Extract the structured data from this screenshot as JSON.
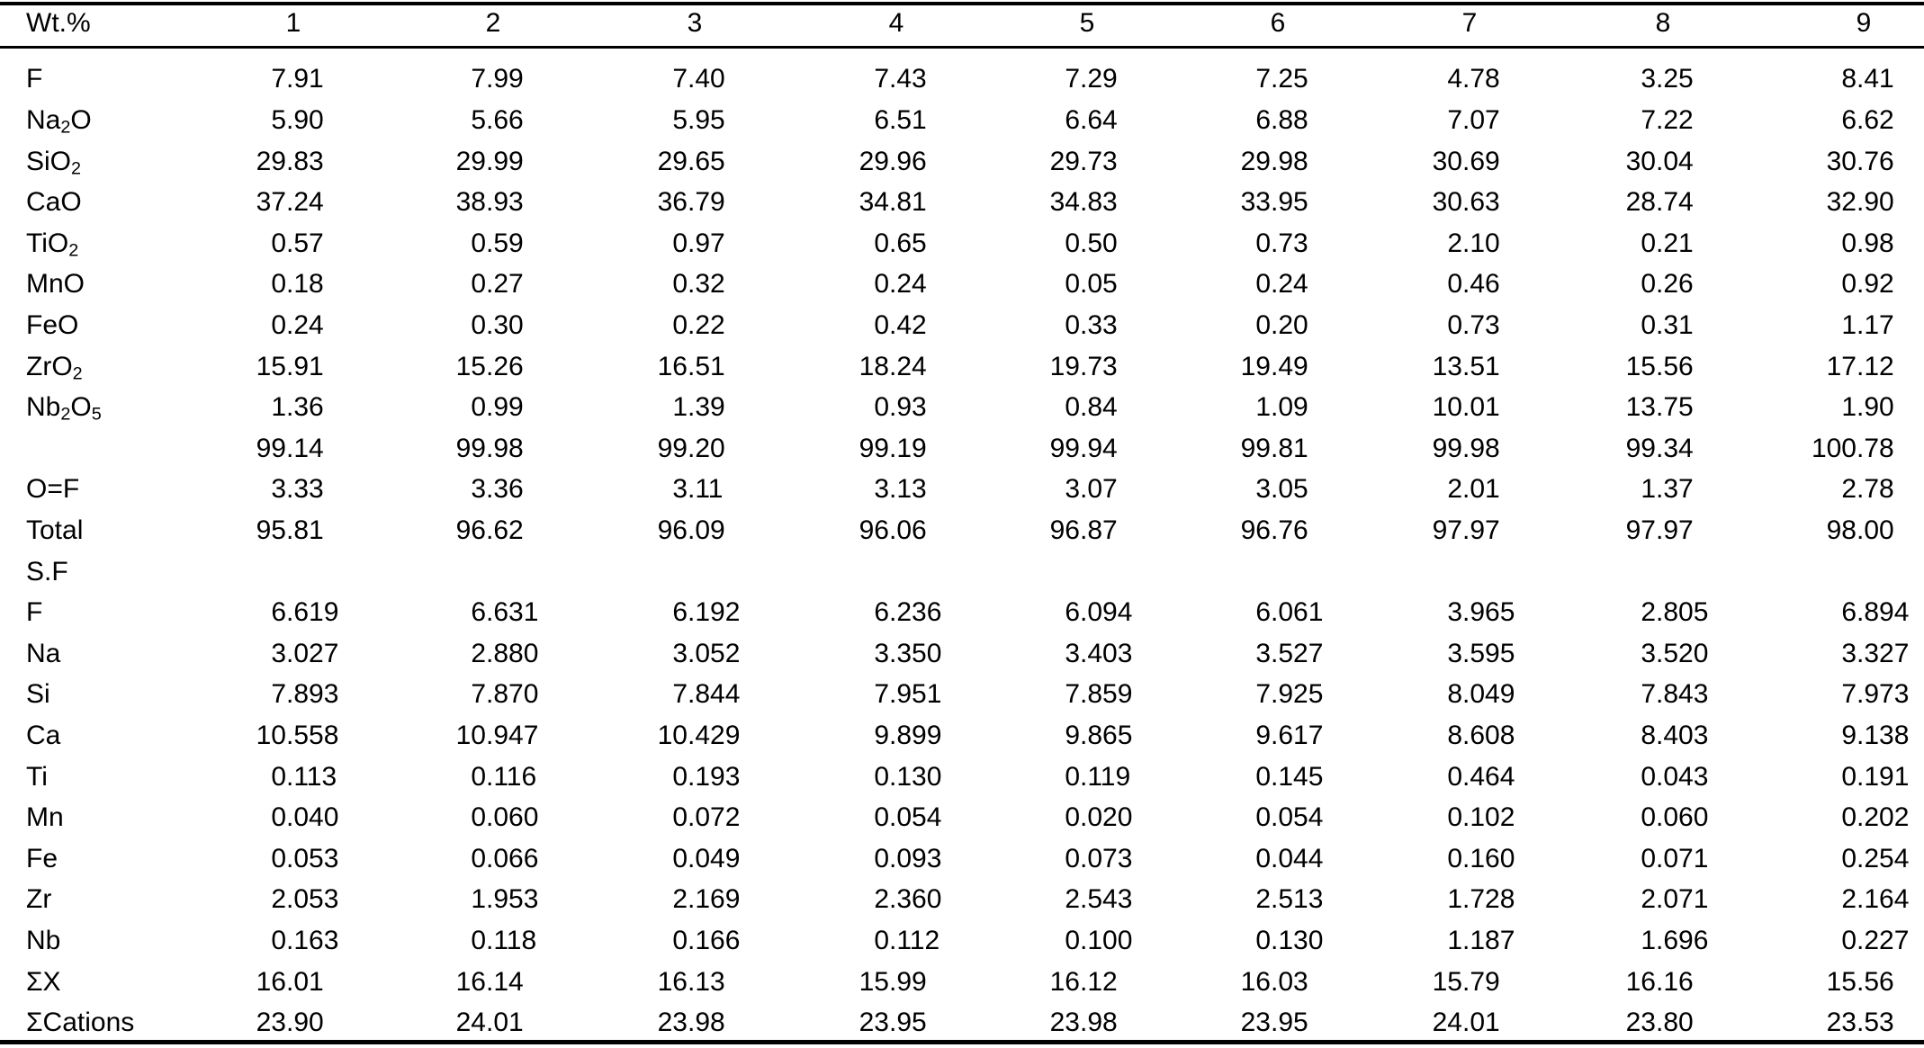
{
  "page": {
    "background_color": "#ffffff",
    "text_color": "#000000",
    "rule_color": "#000000"
  },
  "table": {
    "header": {
      "label": "Wt.%",
      "columns": [
        "1",
        "2",
        "3",
        "4",
        "5",
        "6",
        "7",
        "8",
        "9"
      ]
    },
    "rows": [
      {
        "label": "F",
        "values": [
          "7.91",
          "7.99",
          "7.40",
          "7.43",
          "7.29",
          "7.25",
          "4.78",
          "3.25",
          "8.41"
        ]
      },
      {
        "label": "Na₂O",
        "values": [
          "5.90",
          "5.66",
          "5.95",
          "6.51",
          "6.64",
          "6.88",
          "7.07",
          "7.22",
          "6.62"
        ]
      },
      {
        "label": "SiO₂",
        "values": [
          "29.83",
          "29.99",
          "29.65",
          "29.96",
          "29.73",
          "29.98",
          "30.69",
          "30.04",
          "30.76"
        ]
      },
      {
        "label": "CaO",
        "values": [
          "37.24",
          "38.93",
          "36.79",
          "34.81",
          "34.83",
          "33.95",
          "30.63",
          "28.74",
          "32.90"
        ]
      },
      {
        "label": "TiO₂",
        "values": [
          "0.57",
          "0.59",
          "0.97",
          "0.65",
          "0.50",
          "0.73",
          "2.10",
          "0.21",
          "0.98"
        ]
      },
      {
        "label": "MnO",
        "values": [
          "0.18",
          "0.27",
          "0.32",
          "0.24",
          "0.05",
          "0.24",
          "0.46",
          "0.26",
          "0.92"
        ]
      },
      {
        "label": "FeO",
        "values": [
          "0.24",
          "0.30",
          "0.22",
          "0.42",
          "0.33",
          "0.20",
          "0.73",
          "0.31",
          "1.17"
        ]
      },
      {
        "label": "ZrO₂",
        "values": [
          "15.91",
          "15.26",
          "16.51",
          "18.24",
          "19.73",
          "19.49",
          "13.51",
          "15.56",
          "17.12"
        ]
      },
      {
        "label": "Nb₂O₅",
        "values": [
          "1.36",
          "0.99",
          "1.39",
          "0.93",
          "0.84",
          "1.09",
          "10.01",
          "13.75",
          "1.90"
        ]
      },
      {
        "label": "",
        "values": [
          "99.14",
          "99.98",
          "99.20",
          "99.19",
          "99.94",
          "99.81",
          "99.98",
          "99.34",
          "100.78"
        ]
      },
      {
        "label": "O=F",
        "values": [
          "3.33",
          "3.36",
          "3.11",
          "3.13",
          "3.07",
          "3.05",
          "2.01",
          "1.37",
          "2.78"
        ]
      },
      {
        "label": "Total",
        "values": [
          "95.81",
          "96.62",
          "96.09",
          "96.06",
          "96.87",
          "96.76",
          "97.97",
          "97.97",
          "98.00"
        ]
      },
      {
        "label": "S.F",
        "values": [
          "",
          "",
          "",
          "",
          "",
          "",
          "",
          "",
          ""
        ]
      },
      {
        "label": "F",
        "values": [
          "6.619",
          "6.631",
          "6.192",
          "6.236",
          "6.094",
          "6.061",
          "3.965",
          "2.805",
          "6.894"
        ]
      },
      {
        "label": "Na",
        "values": [
          "3.027",
          "2.880",
          "3.052",
          "3.350",
          "3.403",
          "3.527",
          "3.595",
          "3.520",
          "3.327"
        ]
      },
      {
        "label": "Si",
        "values": [
          "7.893",
          "7.870",
          "7.844",
          "7.951",
          "7.859",
          "7.925",
          "8.049",
          "7.843",
          "7.973"
        ]
      },
      {
        "label": "Ca",
        "values": [
          "10.558",
          "10.947",
          "10.429",
          "9.899",
          "9.865",
          "9.617",
          "8.608",
          "8.403",
          "9.138"
        ]
      },
      {
        "label": "Ti",
        "values": [
          "0.113",
          "0.116",
          "0.193",
          "0.130",
          "0.119",
          "0.145",
          "0.464",
          "0.043",
          "0.191"
        ]
      },
      {
        "label": "Mn",
        "values": [
          "0.040",
          "0.060",
          "0.072",
          "0.054",
          "0.020",
          "0.054",
          "0.102",
          "0.060",
          "0.202"
        ]
      },
      {
        "label": "Fe",
        "values": [
          "0.053",
          "0.066",
          "0.049",
          "0.093",
          "0.073",
          "0.044",
          "0.160",
          "0.071",
          "0.254"
        ]
      },
      {
        "label": "Zr",
        "values": [
          "2.053",
          "1.953",
          "2.169",
          "2.360",
          "2.543",
          "2.513",
          "1.728",
          "2.071",
          "2.164"
        ]
      },
      {
        "label": "Nb",
        "values": [
          "0.163",
          "0.118",
          "0.166",
          "0.112",
          "0.100",
          "0.130",
          "1.187",
          "1.696",
          "0.227"
        ]
      },
      {
        "label": "ΣX",
        "values": [
          "16.01",
          "16.14",
          "16.13",
          "15.99",
          "16.12",
          "16.03",
          "15.79",
          "16.16",
          "15.56"
        ]
      },
      {
        "label": "ΣCations",
        "values": [
          "23.90",
          "24.01",
          "23.98",
          "23.95",
          "23.98",
          "23.95",
          "24.01",
          "23.80",
          "23.53"
        ]
      }
    ]
  }
}
